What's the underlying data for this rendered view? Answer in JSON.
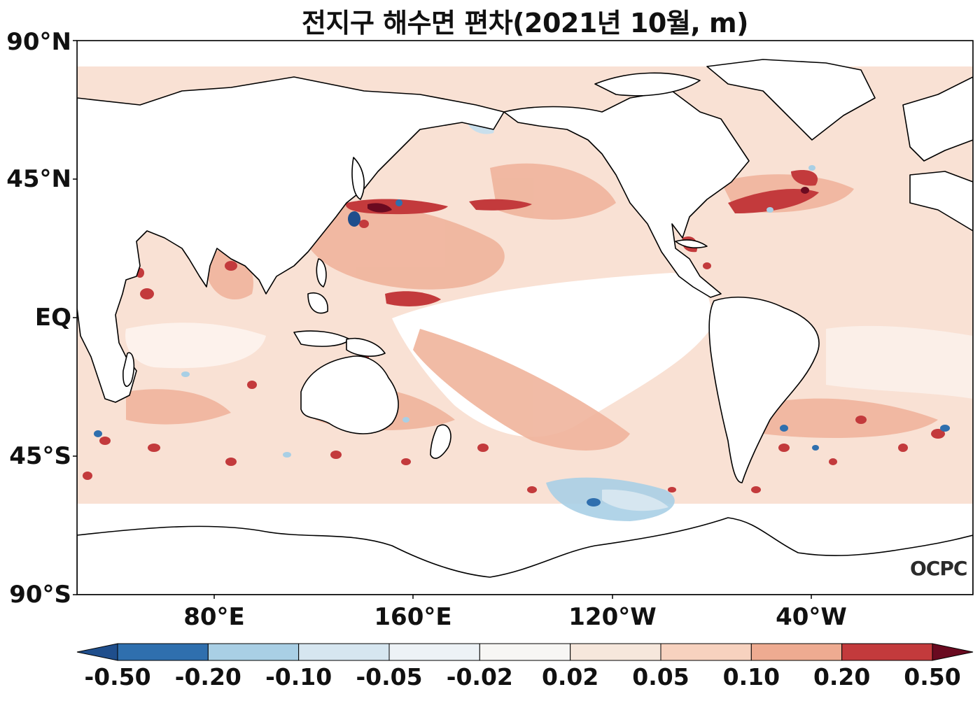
{
  "title": "전지구 해수면 편차(2021년 10월, m)",
  "logo": "OCPC",
  "lat_ticks": [
    "90°N",
    "45°N",
    "EQ",
    "45°S",
    "90°S"
  ],
  "lon_ticks": [
    "80°E",
    "160°E",
    "120°W",
    "40°W"
  ],
  "colorbar": {
    "labels": [
      "-0.50",
      "-0.20",
      "-0.10",
      "-0.05",
      "-0.02",
      "0.02",
      "0.05",
      "0.10",
      "0.20",
      "0.50"
    ],
    "colors": [
      "#1f4e8c",
      "#2f6fae",
      "#a9cfe5",
      "#d6e6f0",
      "#edf2f6",
      "#f7f6f4",
      "#f6e7dc",
      "#f7d2bf",
      "#eeab91",
      "#c33a3c",
      "#6a0a20"
    ]
  },
  "colors": {
    "land": "#ffffff",
    "coast": "#000000",
    "neg_strong": "#1f4e8c",
    "neg_mid": "#a9cfe5",
    "pos_light": "#f7d2bf",
    "pos_mid": "#eeab91",
    "pos_strong": "#c33a3c",
    "pos_extreme": "#6a0a20"
  }
}
